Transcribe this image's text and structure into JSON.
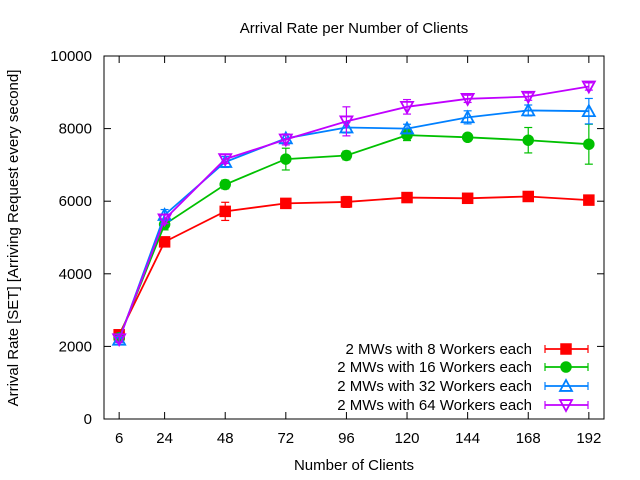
{
  "chart_data": {
    "type": "line",
    "title": "Arrival Rate per Number of Clients",
    "xlabel": "Number of Clients",
    "ylabel": "Arrival Rate [SET] [Arriving Request every second]",
    "x": [
      6,
      24,
      48,
      72,
      96,
      120,
      144,
      168,
      192
    ],
    "x_tick_labels": [
      "6",
      "24",
      "48",
      "72",
      "96",
      "120",
      "144",
      "168",
      "192"
    ],
    "y_tick_values": [
      0,
      2000,
      4000,
      6000,
      8000,
      10000
    ],
    "y_tick_labels": [
      "0",
      "2000",
      "4000",
      "6000",
      "8000",
      "10000"
    ],
    "xlim": [
      0,
      198
    ],
    "ylim": [
      0,
      10000
    ],
    "grid": false,
    "legend_position": "bottom-right",
    "series": [
      {
        "name": "2 MWs with 8 Workers each",
        "color": "#ff0000",
        "marker": "square",
        "values": [
          2320,
          4880,
          5720,
          5940,
          5980,
          6100,
          6080,
          6130,
          6030
        ],
        "errors": [
          100,
          120,
          250,
          80,
          150,
          120,
          80,
          120,
          100
        ]
      },
      {
        "name": "2 MWs with 16 Workers each",
        "color": "#00c000",
        "marker": "circle",
        "values": [
          2240,
          5360,
          6460,
          7160,
          7260,
          7820,
          7760,
          7680,
          7570
        ],
        "errors": [
          80,
          150,
          120,
          300,
          120,
          150,
          100,
          350,
          550
        ]
      },
      {
        "name": "2 MWs with 32 Workers each",
        "color": "#0080ff",
        "marker": "triangle-up",
        "values": [
          2180,
          5620,
          7080,
          7730,
          8030,
          8000,
          8310,
          8500,
          8480
        ],
        "errors": [
          80,
          150,
          150,
          120,
          150,
          120,
          180,
          150,
          350
        ]
      },
      {
        "name": "2 MWs with 64 Workers each",
        "color": "#c000ff",
        "marker": "triangle-down",
        "values": [
          2200,
          5500,
          7160,
          7700,
          8200,
          8600,
          8820,
          8880,
          9160
        ],
        "errors": [
          80,
          120,
          120,
          150,
          400,
          200,
          100,
          100,
          100
        ]
      }
    ]
  }
}
